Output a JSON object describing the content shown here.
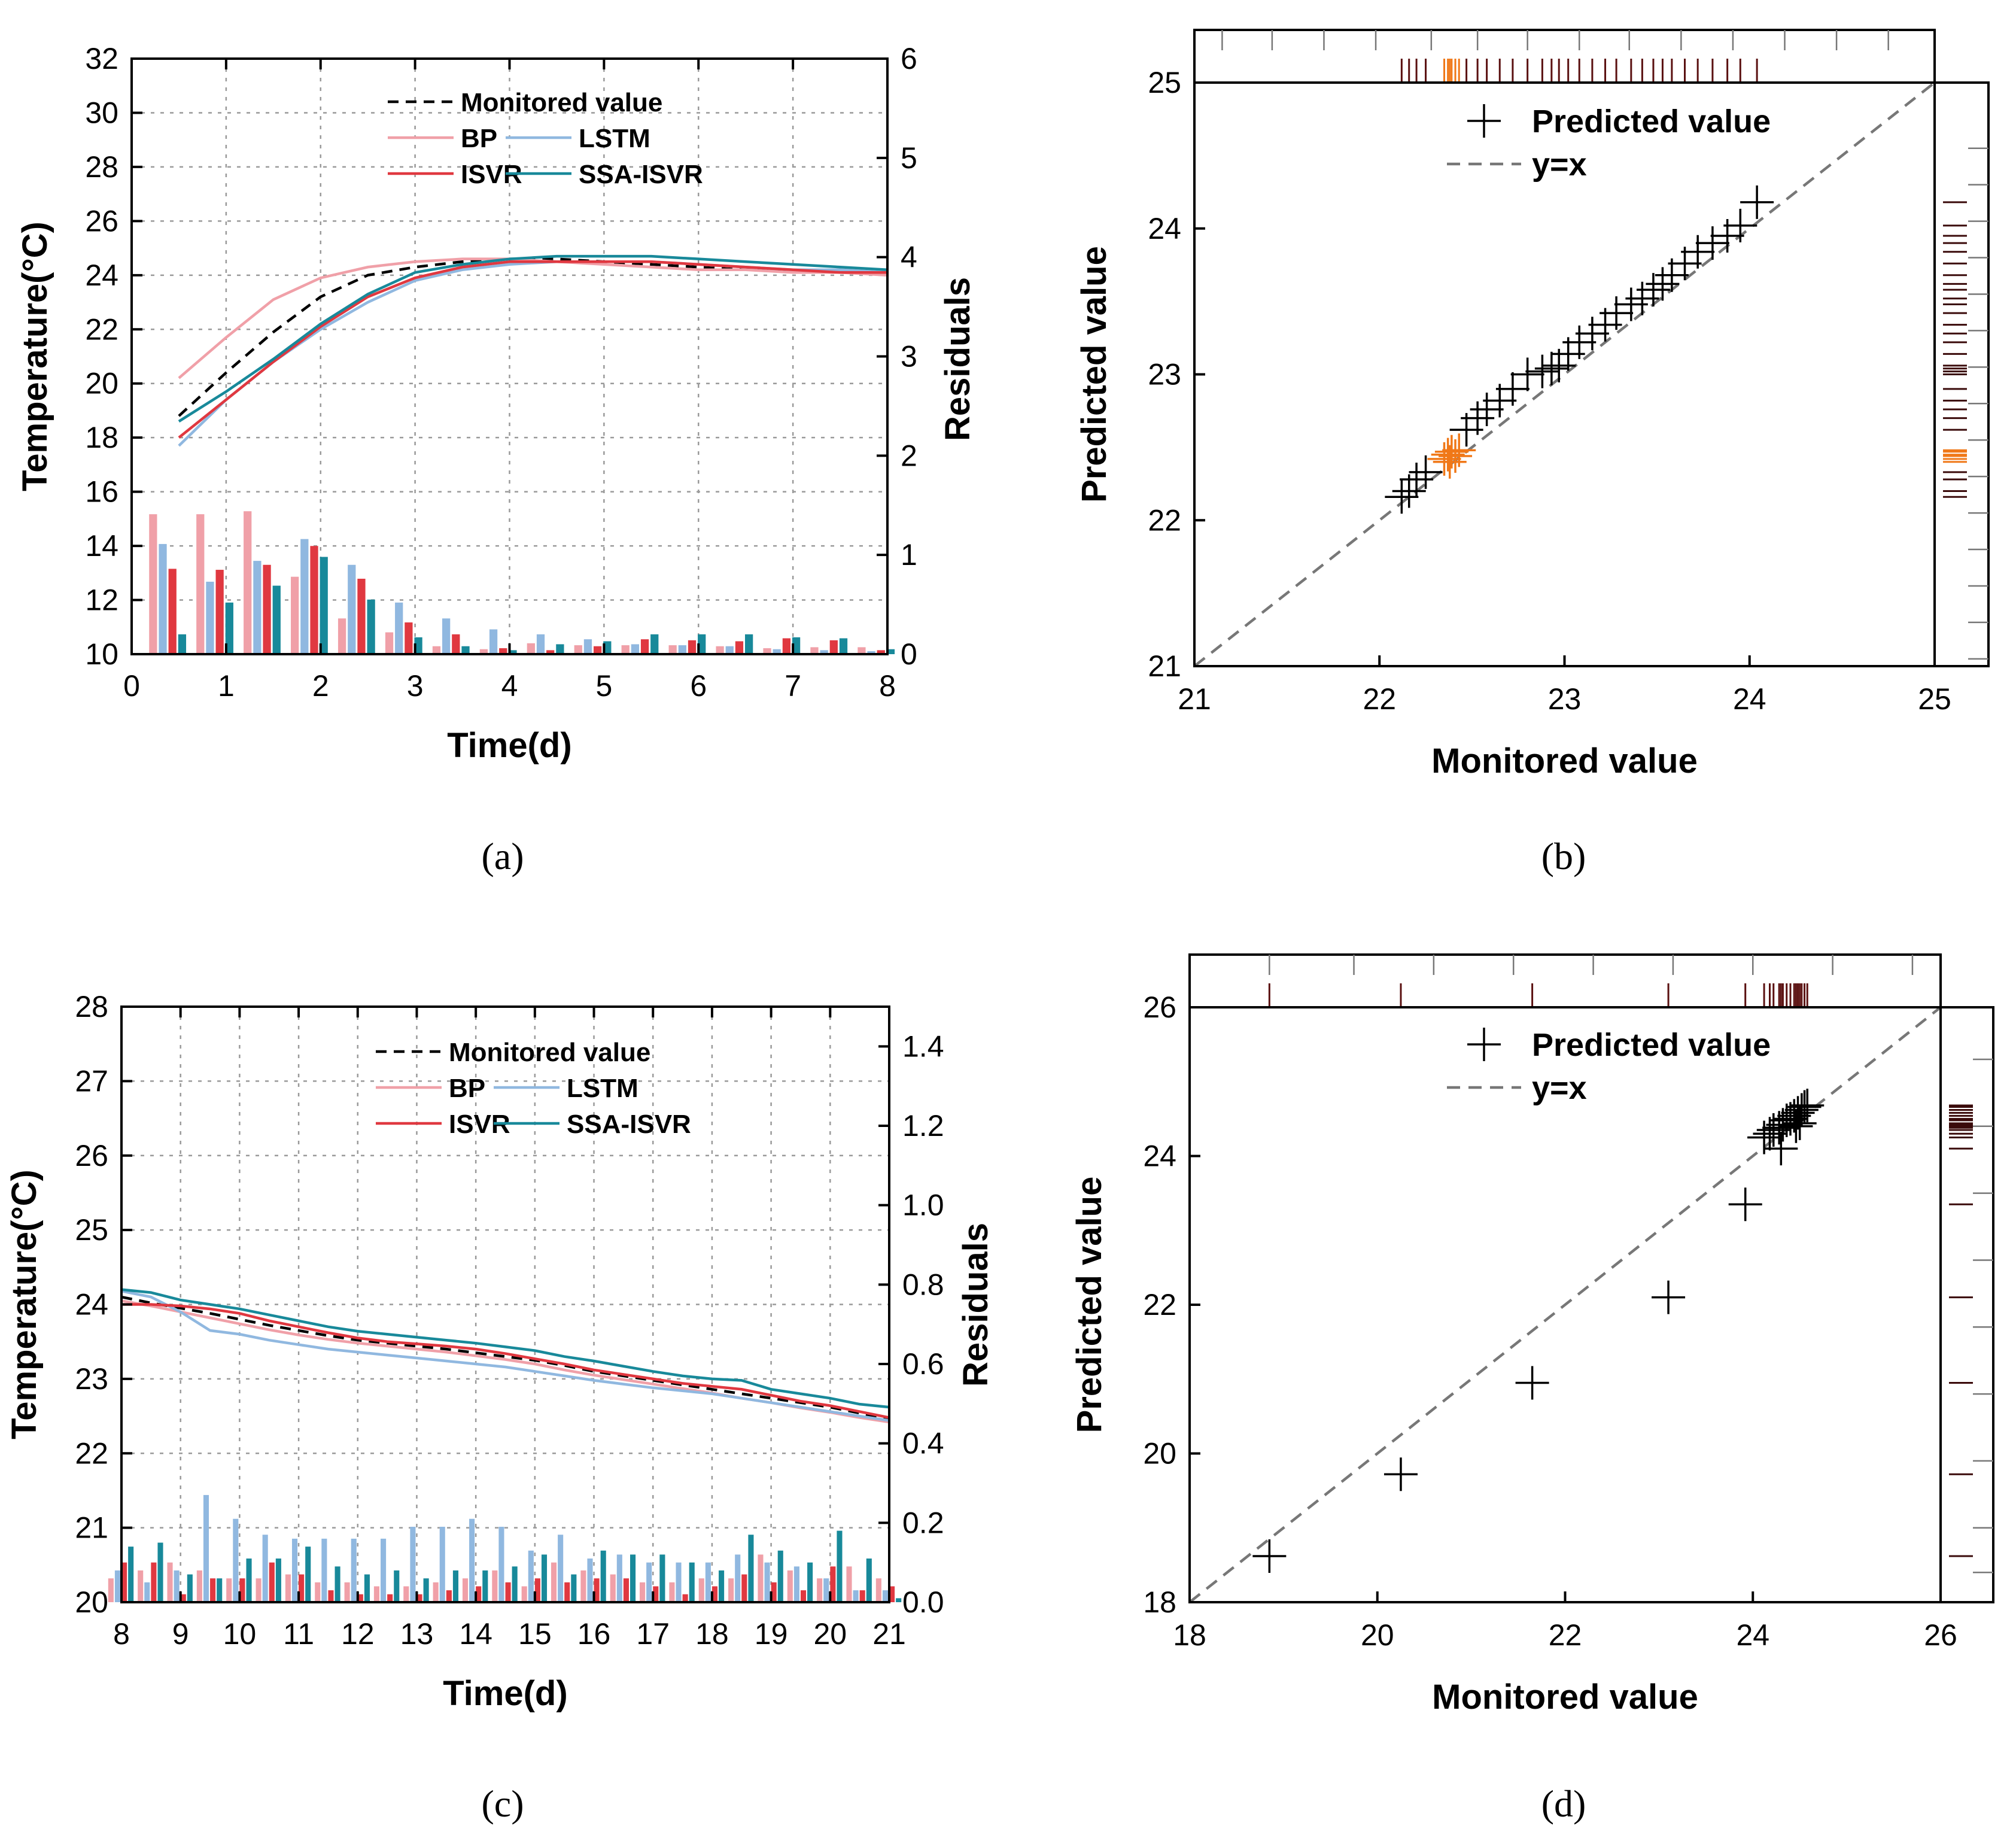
{
  "figure": {
    "captions": [
      "(a)",
      "(b)",
      "(c)",
      "(d)"
    ]
  },
  "colors": {
    "monitored": "#000000",
    "bp": "#f0a0a8",
    "lstm": "#90b8e0",
    "isvr": "#e03840",
    "ssa": "#18899a",
    "predicted_marker": "#000000",
    "highlight_marker": "#f07818",
    "diagonal": "#777777"
  },
  "chart_data": [
    {
      "id": "a",
      "type": "line",
      "title": "",
      "xlabel": "Time(d)",
      "ylabel": "Temperature(°C)",
      "y2label": "Residuals",
      "xlim": [
        0,
        8
      ],
      "ylim": [
        10,
        32
      ],
      "y2lim": [
        0,
        6
      ],
      "xticks": [
        0,
        1,
        2,
        3,
        4,
        5,
        6,
        7,
        8
      ],
      "yticks": [
        10,
        12,
        14,
        16,
        18,
        20,
        22,
        24,
        26,
        28,
        30,
        32
      ],
      "y2ticks": [
        0,
        1,
        2,
        3,
        4,
        5,
        6
      ],
      "grid": true,
      "legend": {
        "position": "top-center",
        "entries": [
          "Monitored value",
          "BP",
          "LSTM",
          "ISVR",
          "SSA-ISVR"
        ]
      },
      "x": [
        0.5,
        1,
        1.5,
        2,
        2.5,
        3,
        3.5,
        4,
        4.5,
        5,
        5.5,
        6,
        6.5,
        7,
        7.5,
        8
      ],
      "series": [
        {
          "name": "Monitored value",
          "key": "monitored",
          "dashed": true,
          "values": [
            18.8,
            20.4,
            21.9,
            23.2,
            24.0,
            24.3,
            24.5,
            24.6,
            24.6,
            24.5,
            24.4,
            24.3,
            24.2,
            24.2,
            24.1,
            24.1
          ]
        },
        {
          "name": "BP",
          "key": "bp",
          "dashed": false,
          "values": [
            20.2,
            21.7,
            23.1,
            23.9,
            24.3,
            24.5,
            24.6,
            24.6,
            24.5,
            24.4,
            24.3,
            24.2,
            24.2,
            24.1,
            24.1,
            24.0
          ]
        },
        {
          "name": "LSTM",
          "key": "lstm",
          "dashed": false,
          "values": [
            17.7,
            19.4,
            20.8,
            22.0,
            23.0,
            23.8,
            24.2,
            24.4,
            24.5,
            24.5,
            24.5,
            24.4,
            24.3,
            24.2,
            24.2,
            24.1
          ]
        },
        {
          "name": "ISVR",
          "key": "isvr",
          "dashed": false,
          "values": [
            18.0,
            19.4,
            20.8,
            22.1,
            23.2,
            23.9,
            24.3,
            24.5,
            24.5,
            24.5,
            24.5,
            24.4,
            24.3,
            24.2,
            24.1,
            24.1
          ]
        },
        {
          "name": "SSA-ISVR",
          "key": "ssa",
          "dashed": false,
          "values": [
            18.6,
            19.7,
            20.9,
            22.2,
            23.3,
            24.1,
            24.4,
            24.6,
            24.7,
            24.7,
            24.7,
            24.6,
            24.5,
            24.4,
            24.3,
            24.2
          ]
        }
      ],
      "residual_bars": [
        {
          "name": "BP",
          "key": "bp",
          "values": [
            1.41,
            1.41,
            1.44,
            0.78,
            0.36,
            0.22,
            0.08,
            0.05,
            0.11,
            0.09,
            0.09,
            0.09,
            0.08,
            0.06,
            0.07,
            0.07
          ]
        },
        {
          "name": "LSTM",
          "key": "lstm",
          "values": [
            1.11,
            0.73,
            0.94,
            1.16,
            0.9,
            0.52,
            0.36,
            0.25,
            0.2,
            0.15,
            0.1,
            0.09,
            0.08,
            0.05,
            0.04,
            0.03
          ]
        },
        {
          "name": "ISVR",
          "key": "isvr",
          "values": [
            0.86,
            0.85,
            0.9,
            1.09,
            0.76,
            0.32,
            0.2,
            0.06,
            0.04,
            0.08,
            0.15,
            0.14,
            0.13,
            0.16,
            0.14,
            0.04
          ]
        },
        {
          "name": "SSA-ISVR",
          "key": "ssa",
          "values": [
            0.2,
            0.52,
            0.69,
            0.98,
            0.55,
            0.17,
            0.08,
            0.04,
            0.1,
            0.13,
            0.2,
            0.2,
            0.2,
            0.17,
            0.16,
            0.05
          ]
        }
      ]
    },
    {
      "id": "b",
      "type": "scatter",
      "title": "",
      "xlabel": "Monitored value",
      "ylabel": "Predicted value",
      "xlim": [
        21,
        25
      ],
      "ylim": [
        21,
        25
      ],
      "xticks": [
        21,
        22,
        23,
        24,
        25
      ],
      "yticks": [
        21,
        22,
        23,
        24,
        25
      ],
      "legend": {
        "position": "top-center",
        "entries": [
          "Predicted value",
          "y=x"
        ]
      },
      "points": [
        [
          22.12,
          22.16
        ],
        [
          22.16,
          22.2
        ],
        [
          22.2,
          22.28
        ],
        [
          22.25,
          22.33
        ],
        [
          22.47,
          22.62
        ],
        [
          22.53,
          22.7
        ],
        [
          22.58,
          22.76
        ],
        [
          22.65,
          22.82
        ],
        [
          22.72,
          22.9
        ],
        [
          22.8,
          23.0
        ],
        [
          22.88,
          23.02
        ],
        [
          22.93,
          23.04
        ],
        [
          22.97,
          23.06
        ],
        [
          23.02,
          23.14
        ],
        [
          23.08,
          23.22
        ],
        [
          23.15,
          23.28
        ],
        [
          23.22,
          23.34
        ],
        [
          23.28,
          23.42
        ],
        [
          23.36,
          23.48
        ],
        [
          23.42,
          23.52
        ],
        [
          23.48,
          23.58
        ],
        [
          23.53,
          23.62
        ],
        [
          23.58,
          23.68
        ],
        [
          23.65,
          23.76
        ],
        [
          23.72,
          23.84
        ],
        [
          23.8,
          23.9
        ],
        [
          23.88,
          23.95
        ],
        [
          23.95,
          24.02
        ],
        [
          24.04,
          24.18
        ]
      ],
      "highlight_points": [
        [
          22.35,
          22.42
        ],
        [
          22.37,
          22.45
        ],
        [
          22.39,
          22.47
        ],
        [
          22.41,
          22.44
        ],
        [
          22.43,
          22.48
        ],
        [
          22.38,
          22.4
        ]
      ]
    },
    {
      "id": "c",
      "type": "line",
      "title": "",
      "xlabel": "Time(d)",
      "ylabel": "Temperature(°C)",
      "y2label": "Residuals",
      "xlim": [
        8,
        21
      ],
      "ylim": [
        20,
        28
      ],
      "y2lim": [
        0,
        1.5
      ],
      "xticks": [
        8,
        9,
        10,
        11,
        12,
        13,
        14,
        15,
        16,
        17,
        18,
        19,
        20,
        21
      ],
      "yticks": [
        20,
        21,
        22,
        23,
        24,
        25,
        26,
        27,
        28
      ],
      "y2ticks": [
        0.0,
        0.2,
        0.4,
        0.6,
        0.8,
        1.0,
        1.2,
        1.4
      ],
      "grid": true,
      "legend": {
        "position": "top-center",
        "entries": [
          "Monitored value",
          "BP",
          "LSTM",
          "ISVR",
          "SSA-ISVR"
        ]
      },
      "x": [
        8,
        8.5,
        9,
        9.5,
        10,
        10.5,
        11,
        11.5,
        12,
        12.5,
        13,
        13.5,
        14,
        14.5,
        15,
        15.5,
        16,
        16.5,
        17,
        17.5,
        18,
        18.5,
        19,
        19.5,
        20,
        20.5,
        21
      ],
      "series": [
        {
          "name": "Monitored value",
          "key": "monitored",
          "dashed": true,
          "values": [
            24.1,
            24.02,
            23.95,
            23.88,
            23.8,
            23.72,
            23.65,
            23.58,
            23.52,
            23.48,
            23.44,
            23.4,
            23.35,
            23.3,
            23.25,
            23.18,
            23.1,
            23.04,
            22.98,
            22.92,
            22.86,
            22.8,
            22.74,
            22.68,
            22.62,
            22.54,
            22.46
          ]
        },
        {
          "name": "BP",
          "key": "bp",
          "dashed": false,
          "values": [
            24.05,
            23.98,
            23.9,
            23.82,
            23.74,
            23.66,
            23.59,
            23.53,
            23.48,
            23.44,
            23.4,
            23.36,
            23.31,
            23.26,
            23.2,
            23.12,
            23.05,
            22.99,
            22.93,
            22.87,
            22.81,
            22.74,
            22.68,
            22.61,
            22.55,
            22.48,
            22.42
          ]
        },
        {
          "name": "LSTM",
          "key": "lstm",
          "dashed": false,
          "values": [
            24.18,
            24.1,
            23.9,
            23.65,
            23.6,
            23.52,
            23.46,
            23.4,
            23.36,
            23.32,
            23.28,
            23.24,
            23.2,
            23.16,
            23.1,
            23.04,
            22.98,
            22.93,
            22.88,
            22.84,
            22.8,
            22.74,
            22.68,
            22.62,
            22.56,
            22.5,
            22.44
          ]
        },
        {
          "name": "ISVR",
          "key": "isvr",
          "dashed": false,
          "values": [
            24.0,
            24.0,
            23.98,
            23.94,
            23.88,
            23.78,
            23.7,
            23.62,
            23.55,
            23.5,
            23.47,
            23.44,
            23.4,
            23.34,
            23.27,
            23.2,
            23.12,
            23.06,
            23.0,
            22.94,
            22.9,
            22.86,
            22.78,
            22.7,
            22.64,
            22.56,
            22.48
          ]
        },
        {
          "name": "SSA-ISVR",
          "key": "ssa",
          "dashed": false,
          "values": [
            24.2,
            24.16,
            24.06,
            24.0,
            23.94,
            23.86,
            23.78,
            23.7,
            23.64,
            23.6,
            23.56,
            23.52,
            23.48,
            23.43,
            23.38,
            23.3,
            23.24,
            23.17,
            23.1,
            23.04,
            23.0,
            22.98,
            22.86,
            22.8,
            22.74,
            22.66,
            22.62
          ]
        }
      ],
      "residual_bars": [
        {
          "name": "BP",
          "key": "bp",
          "values": [
            0.06,
            0.08,
            0.1,
            0.08,
            0.06,
            0.06,
            0.07,
            0.05,
            0.05,
            0.04,
            0.04,
            0.05,
            0.06,
            0.08,
            0.04,
            0.1,
            0.08,
            0.07,
            0.05,
            0.05,
            0.06,
            0.06,
            0.12,
            0.08,
            0.06,
            0.09,
            0.06
          ]
        },
        {
          "name": "LSTM",
          "key": "lstm",
          "values": [
            0.08,
            0.05,
            0.08,
            0.27,
            0.21,
            0.17,
            0.16,
            0.16,
            0.16,
            0.16,
            0.19,
            0.19,
            0.21,
            0.19,
            0.13,
            0.17,
            0.11,
            0.12,
            0.1,
            0.1,
            0.1,
            0.12,
            0.1,
            0.09,
            0.06,
            0.03,
            0.03
          ]
        },
        {
          "name": "ISVR",
          "key": "isvr",
          "values": [
            0.1,
            0.1,
            0.02,
            0.06,
            0.06,
            0.1,
            0.07,
            0.03,
            0.02,
            0.02,
            0.02,
            0.03,
            0.04,
            0.05,
            0.06,
            0.05,
            0.06,
            0.06,
            0.04,
            0.02,
            0.04,
            0.07,
            0.05,
            0.03,
            0.09,
            0.03,
            0.04
          ]
        },
        {
          "name": "SSA-ISVR",
          "key": "ssa",
          "values": [
            0.14,
            0.15,
            0.07,
            0.06,
            0.11,
            0.11,
            0.14,
            0.09,
            0.07,
            0.08,
            0.06,
            0.08,
            0.08,
            0.09,
            0.12,
            0.07,
            0.13,
            0.12,
            0.12,
            0.1,
            0.08,
            0.17,
            0.13,
            0.1,
            0.18,
            0.11,
            0.01
          ]
        }
      ]
    },
    {
      "id": "d",
      "type": "scatter",
      "title": "",
      "xlabel": "Monitored value",
      "ylabel": "Predicted value",
      "xlim": [
        18,
        26
      ],
      "ylim": [
        18,
        26
      ],
      "xticks": [
        18,
        20,
        22,
        24,
        26
      ],
      "yticks": [
        18,
        20,
        22,
        24,
        26
      ],
      "legend": {
        "position": "top-center",
        "entries": [
          "Predicted value",
          "y=x"
        ]
      },
      "points": [
        [
          18.85,
          18.62
        ],
        [
          20.25,
          19.72
        ],
        [
          21.65,
          20.95
        ],
        [
          23.1,
          22.1
        ],
        [
          23.92,
          23.35
        ],
        [
          24.12,
          24.25
        ],
        [
          24.18,
          24.3
        ],
        [
          24.22,
          24.35
        ],
        [
          24.28,
          24.38
        ],
        [
          24.32,
          24.42
        ],
        [
          24.36,
          24.48
        ],
        [
          24.4,
          24.5
        ],
        [
          24.44,
          24.54
        ],
        [
          24.48,
          24.58
        ],
        [
          24.52,
          24.62
        ],
        [
          24.55,
          24.66
        ],
        [
          24.58,
          24.68
        ],
        [
          24.3,
          24.1
        ],
        [
          24.46,
          24.4
        ],
        [
          24.5,
          24.44
        ]
      ],
      "highlight_points": []
    }
  ]
}
